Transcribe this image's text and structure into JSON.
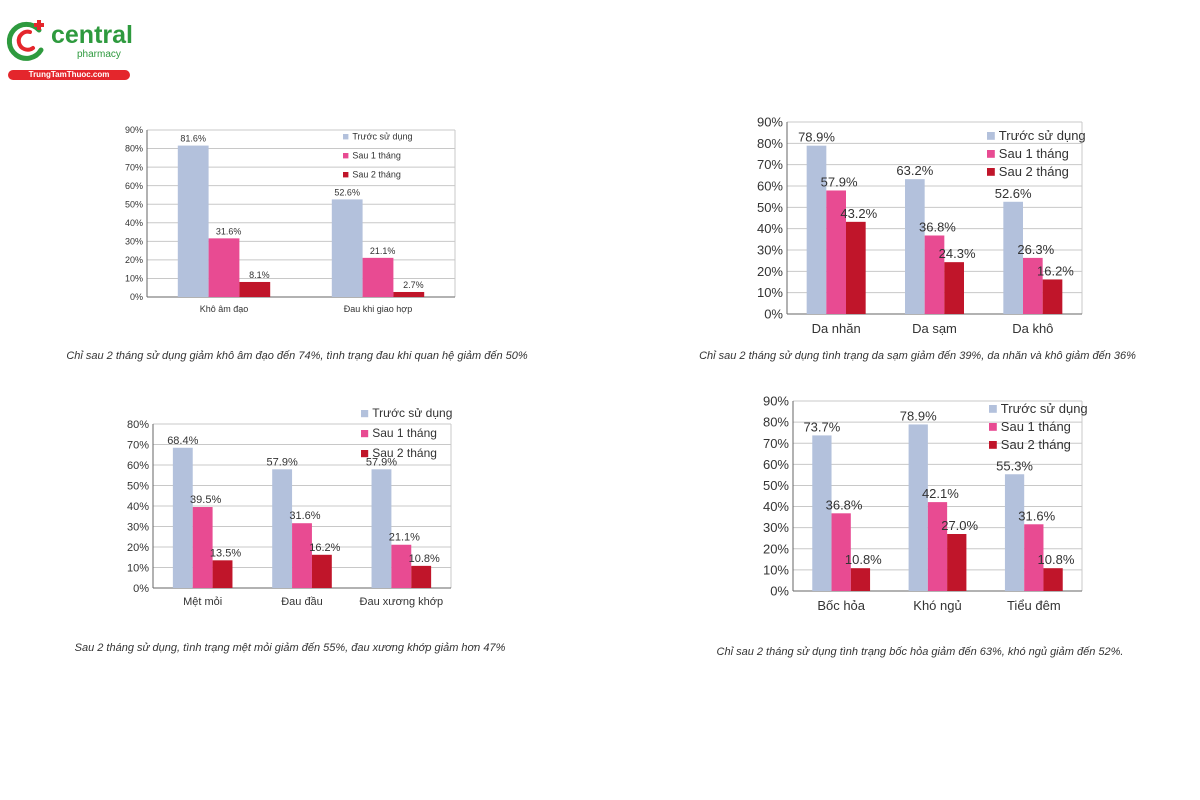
{
  "brand": {
    "name": "central",
    "sub": "pharmacy",
    "site": "TrungTamThuoc.com"
  },
  "colors": {
    "series1": "#b3c1dc",
    "series2": "#e84b92",
    "series3": "#c0152a",
    "grid": "#c8c8c8"
  },
  "chart_data": [
    {
      "type": "bar",
      "categories": [
        "Khô âm đạo",
        "Đau khi giao hợp"
      ],
      "series": [
        {
          "name": "Trước sử dụng",
          "values": [
            81.6,
            52.6
          ]
        },
        {
          "name": "Sau 1 tháng",
          "values": [
            31.6,
            21.1
          ]
        },
        {
          "name": "Sau 2 tháng",
          "values": [
            8.1,
            2.7
          ]
        }
      ],
      "ylim": [
        0,
        90
      ],
      "yticks": [
        0,
        10,
        20,
        30,
        40,
        50,
        60,
        70,
        80,
        90
      ],
      "grid": true,
      "legend": "top-right",
      "caption": "Chỉ sau 2 tháng sử dụng giảm khô âm đạo đến 74%, tình trạng đau khi quan hệ giảm đến 50%"
    },
    {
      "type": "bar",
      "categories": [
        "Da nhăn",
        "Da sạm",
        "Da khô"
      ],
      "series": [
        {
          "name": "Trước sử dụng",
          "values": [
            78.9,
            63.2,
            52.6
          ]
        },
        {
          "name": "Sau 1 tháng",
          "values": [
            57.9,
            36.8,
            26.3
          ]
        },
        {
          "name": "Sau 2 tháng",
          "values": [
            43.2,
            24.3,
            16.2
          ]
        }
      ],
      "ylim": [
        0,
        90
      ],
      "yticks": [
        0,
        10,
        20,
        30,
        40,
        50,
        60,
        70,
        80,
        90
      ],
      "grid": true,
      "legend": "top-right",
      "caption": "Chỉ sau 2 tháng sử dụng tình trạng da sạm giảm đến 39%, da nhăn và khô giảm đến 36%"
    },
    {
      "type": "bar",
      "categories": [
        "Mệt mỏi",
        "Đau đầu",
        "Đau xương khớp"
      ],
      "series": [
        {
          "name": "Trước sử dụng",
          "values": [
            68.4,
            57.9,
            57.9
          ]
        },
        {
          "name": "Sau 1 tháng",
          "values": [
            39.5,
            31.6,
            21.1
          ]
        },
        {
          "name": "Sau 2 tháng",
          "values": [
            13.5,
            16.2,
            10.8
          ]
        }
      ],
      "ylim": [
        0,
        80
      ],
      "yticks": [
        0,
        10,
        20,
        30,
        40,
        50,
        60,
        70,
        80
      ],
      "grid": true,
      "legend": "top-right",
      "caption": "Sau 2 tháng sử dụng, tình trạng mệt mỏi giảm đến 55%, đau xương khớp giảm hơn 47%"
    },
    {
      "type": "bar",
      "categories": [
        "Bốc hỏa",
        "Khó ngủ",
        "Tiểu đêm"
      ],
      "series": [
        {
          "name": "Trước sử dụng",
          "values": [
            73.7,
            78.9,
            55.3
          ]
        },
        {
          "name": "Sau 1 tháng",
          "values": [
            36.8,
            42.1,
            31.6
          ]
        },
        {
          "name": "Sau 2 tháng",
          "values": [
            10.8,
            27.0,
            10.8
          ]
        }
      ],
      "ylim": [
        0,
        90
      ],
      "yticks": [
        0,
        10,
        20,
        30,
        40,
        50,
        60,
        70,
        80,
        90
      ],
      "grid": true,
      "legend": "top-right",
      "caption": "Chỉ sau 2 tháng sử dụng tình trạng bốc hỏa giảm đến 63%, khó ngủ giảm đến 52%."
    }
  ]
}
